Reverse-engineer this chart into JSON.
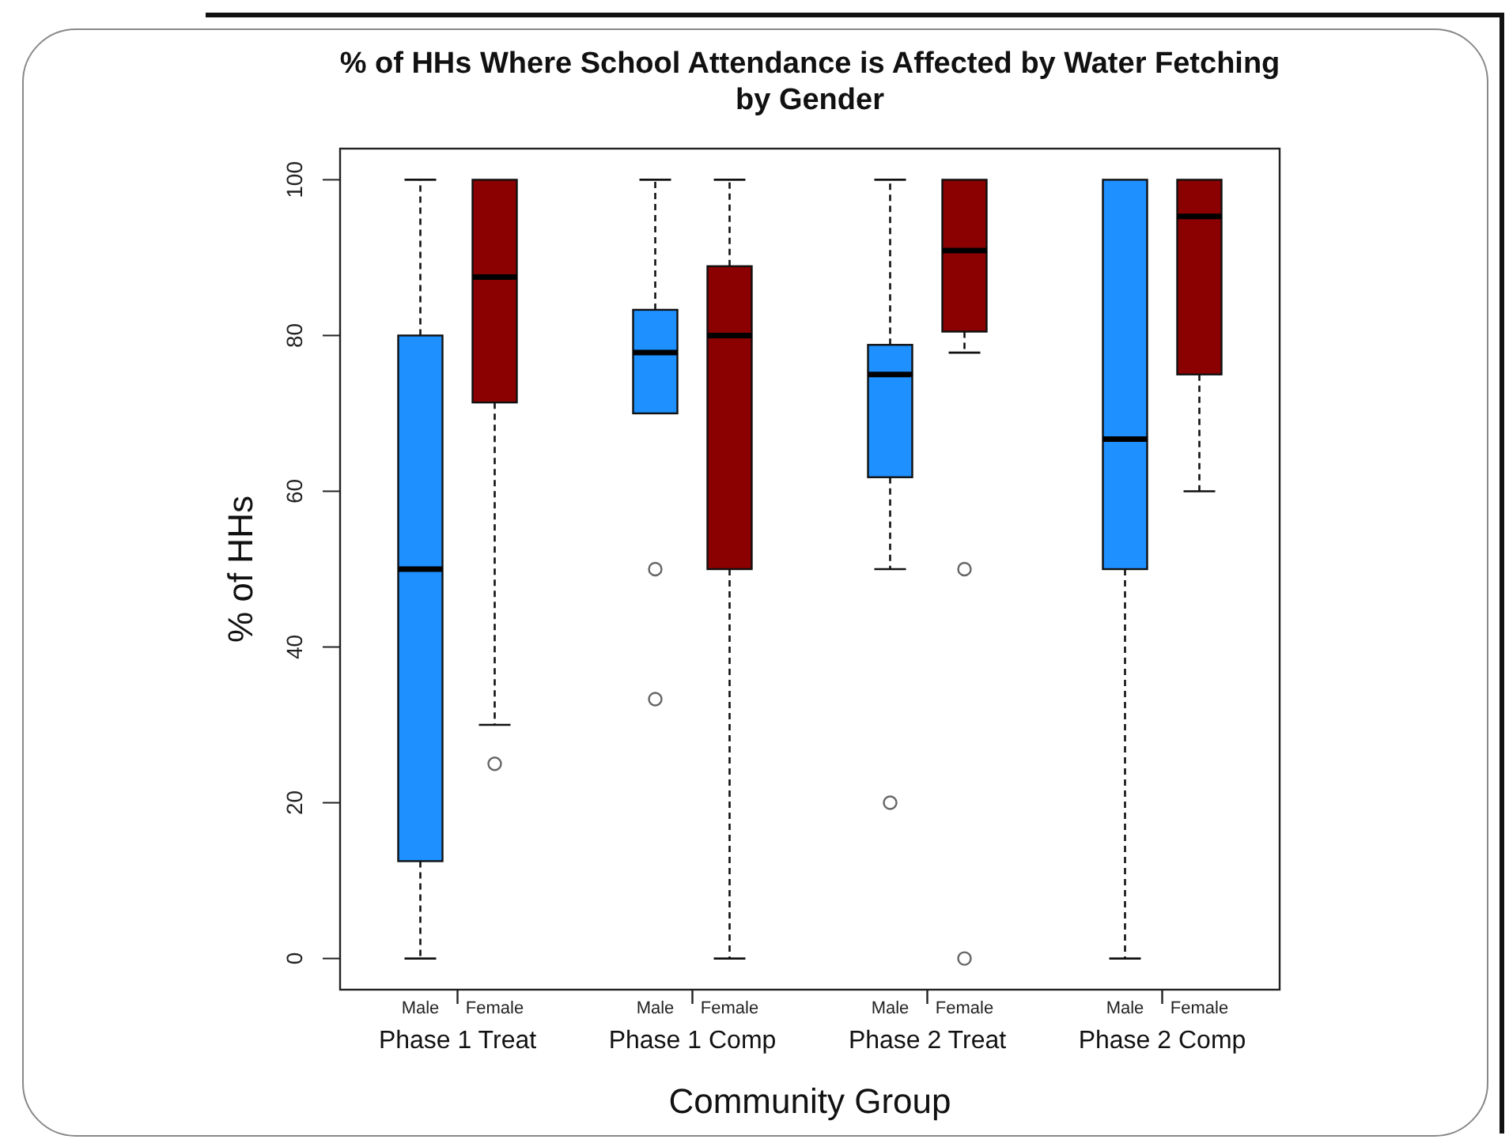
{
  "chart_data": {
    "type": "box",
    "title": "% of HHs Where School Attendance is Affected by Water Fetching by Gender",
    "xlabel": "Community Group",
    "ylabel": "% of HHs",
    "categories": [
      "Male",
      "Female",
      "Male",
      "Female",
      "Male",
      "Female",
      "Male",
      "Female"
    ],
    "colors": [
      "#1e90ff",
      "#8b0000",
      "#1e90ff",
      "#8b0000",
      "#1e90ff",
      "#8b0000",
      "#1e90ff",
      "#8b0000"
    ],
    "boxes": [
      {
        "low": 0,
        "q1": 12.5,
        "median": 50,
        "q3": 80,
        "high": 100
      },
      {
        "low": 30,
        "q1": 71.4,
        "median": 87.5,
        "q3": 100,
        "high": 100,
        "outliers": [
          25
        ]
      },
      {
        "low": 70,
        "q1": 70,
        "median": 77.8,
        "q3": 83.3,
        "high": 100,
        "outliers": [
          50,
          33.3
        ]
      },
      {
        "low": 0,
        "q1": 50,
        "median": 80,
        "q3": 88.9,
        "high": 100
      },
      {
        "low": 50,
        "q1": 61.8,
        "median": 75,
        "q3": 78.8,
        "high": 100,
        "outliers": [
          20
        ]
      },
      {
        "low": 77.8,
        "q1": 80.5,
        "median": 90.9,
        "q3": 100,
        "high": 100,
        "outliers": [
          50,
          0
        ]
      },
      {
        "low": 0,
        "q1": 50,
        "median": 66.7,
        "q3": 100,
        "high": 100
      },
      {
        "low": 60,
        "q1": 75,
        "median": 95.3,
        "q3": 100,
        "high": 100
      }
    ],
    "annotations": [
      "Phase 1 Treat",
      "Phase 1 Comp",
      "Phase 2 Treat",
      "Phase 2 Comp"
    ],
    "ylim": [
      -4,
      104
    ],
    "yticks": [
      0,
      20,
      40,
      60,
      80,
      100
    ],
    "line_style": "dashed"
  }
}
